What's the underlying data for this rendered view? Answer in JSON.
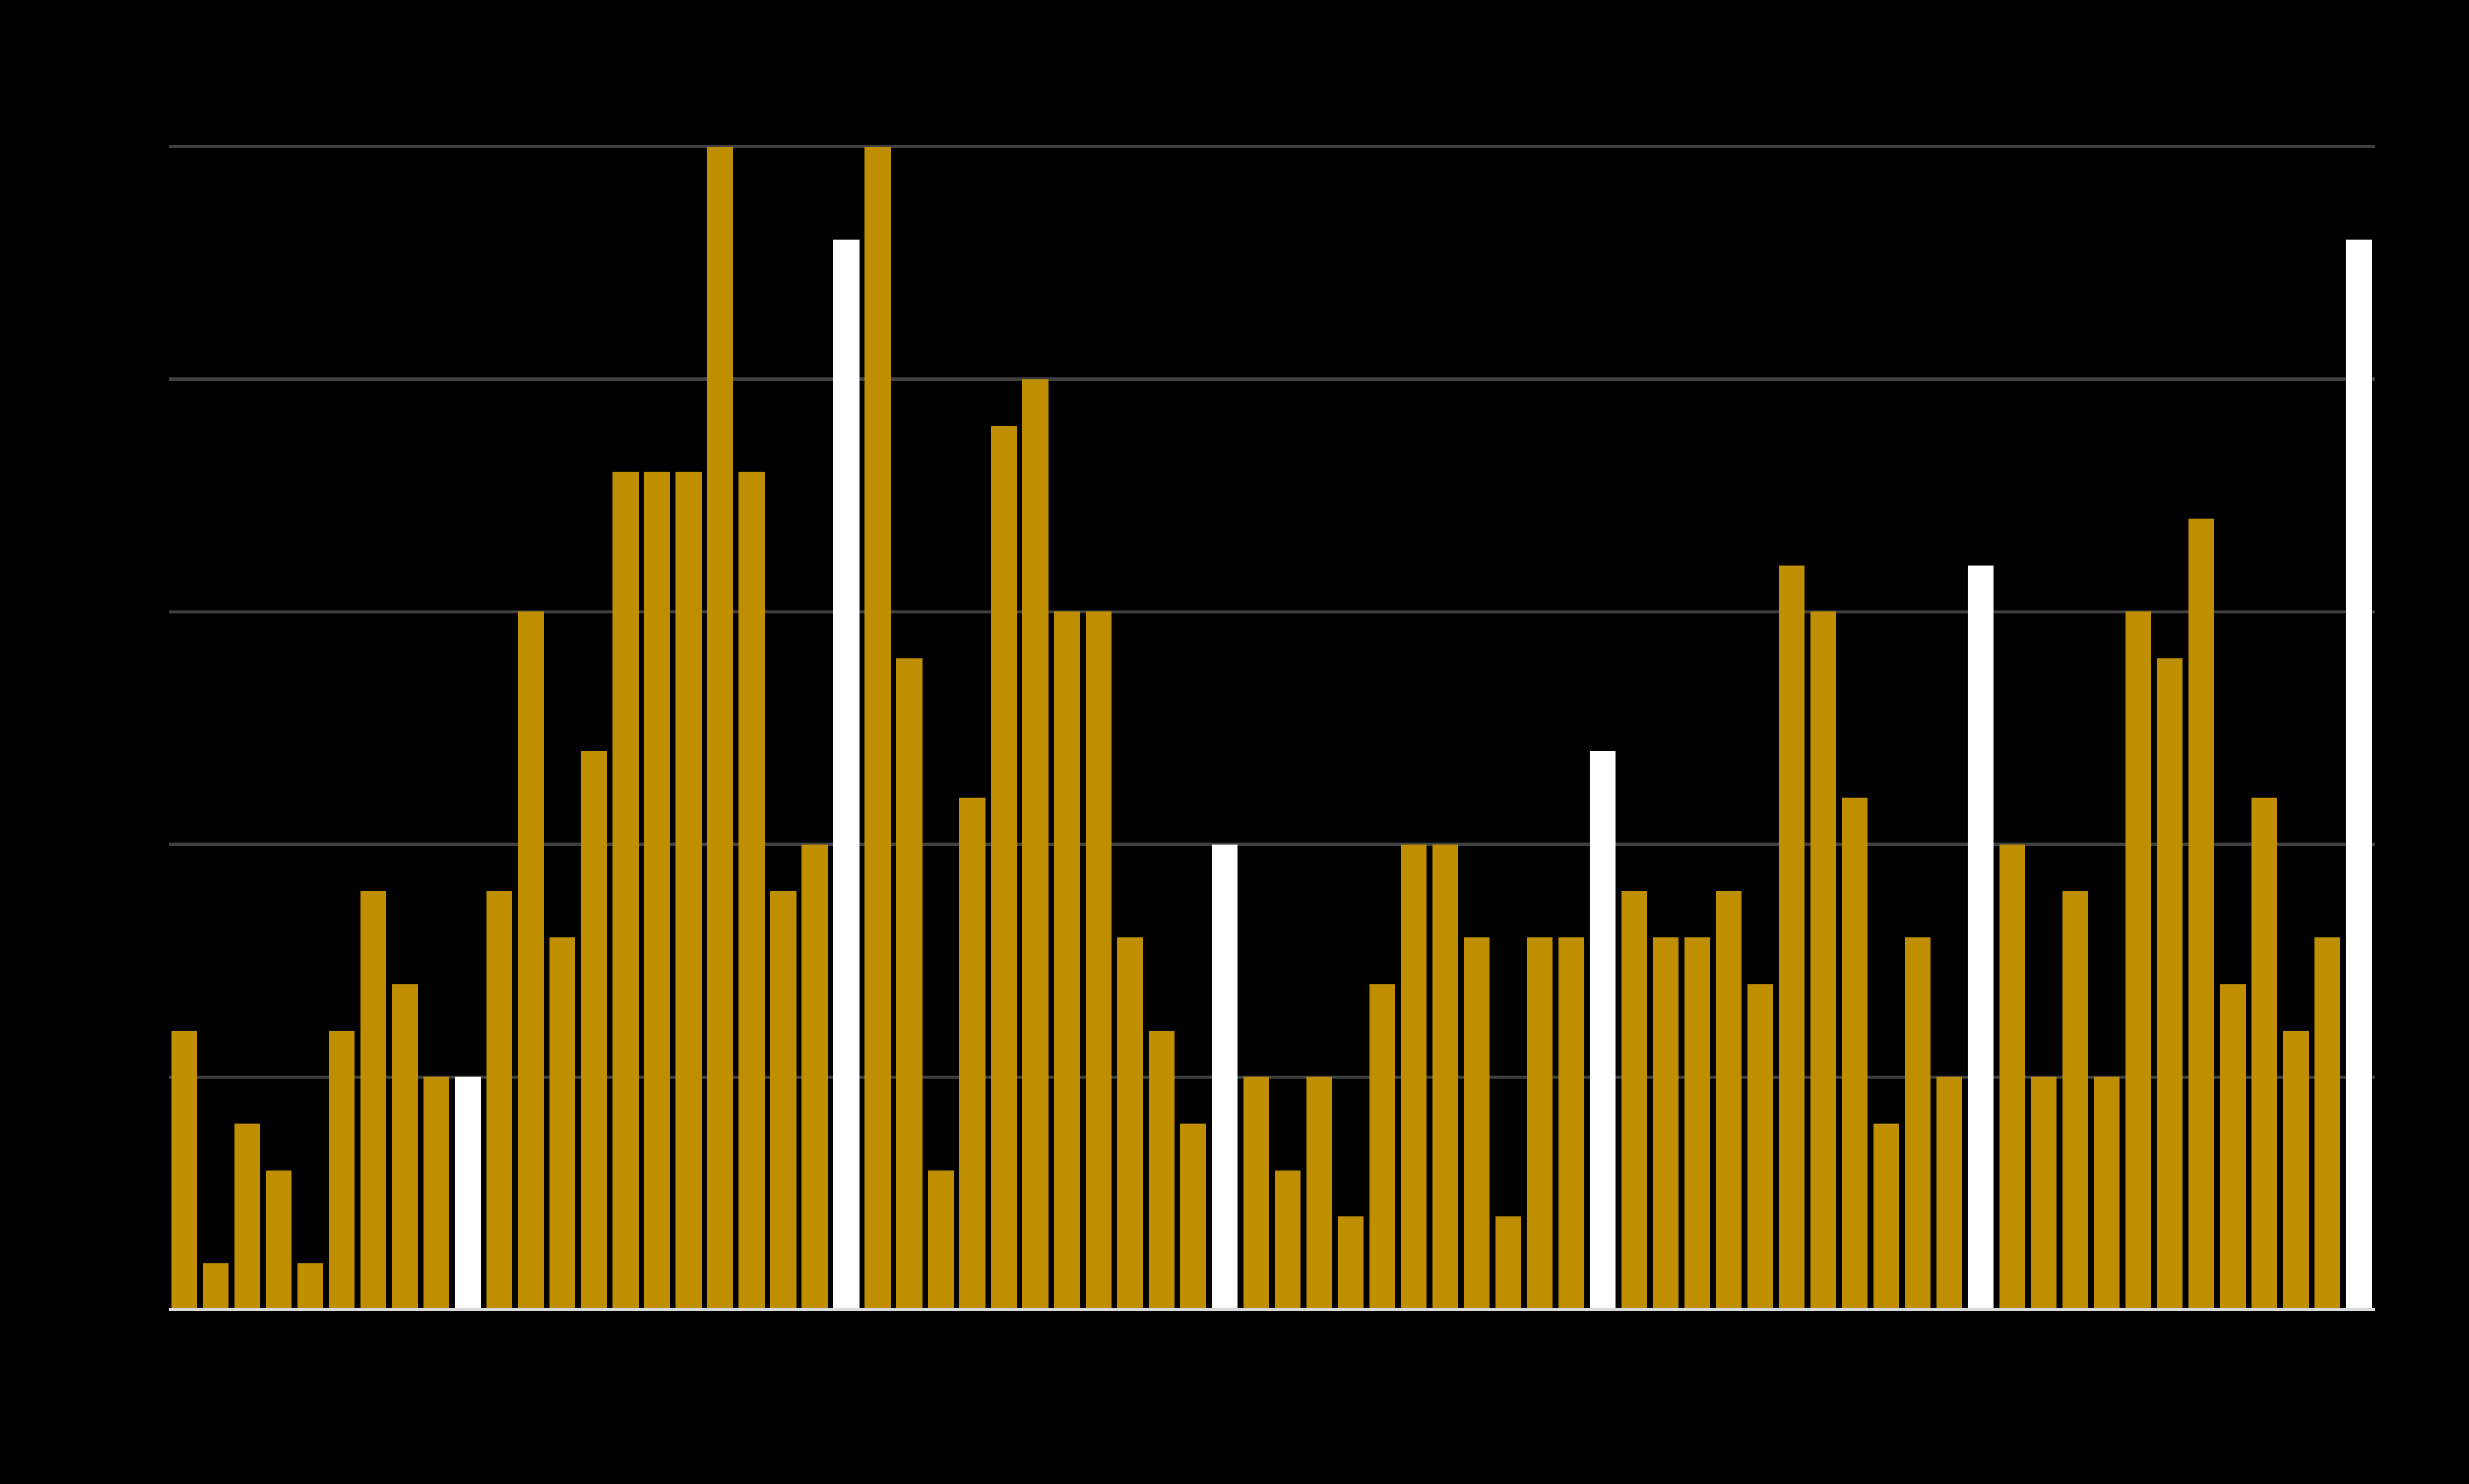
{
  "chart_data": {
    "type": "bar",
    "values": [
      6,
      1,
      4,
      3,
      1,
      6,
      9,
      7,
      5,
      5,
      9,
      15,
      8,
      12,
      18,
      18,
      18,
      25,
      18,
      9,
      10,
      23,
      25,
      14,
      3,
      11,
      19,
      20,
      15,
      15,
      8,
      6,
      4,
      10,
      5,
      3,
      5,
      2,
      7,
      10,
      10,
      8,
      2,
      8,
      8,
      12,
      9,
      8,
      8,
      9,
      7,
      16,
      15,
      11,
      4,
      8,
      5,
      16,
      10,
      5,
      9,
      5,
      15,
      14,
      17,
      7,
      11,
      6,
      8,
      23
    ],
    "colors": [
      "#bf8f00",
      "#bf8f00",
      "#bf8f00",
      "#bf8f00",
      "#bf8f00",
      "#bf8f00",
      "#bf8f00",
      "#bf8f00",
      "#bf8f00",
      "#ffffff",
      "#bf8f00",
      "#bf8f00",
      "#bf8f00",
      "#bf8f00",
      "#bf8f00",
      "#bf8f00",
      "#bf8f00",
      "#bf8f00",
      "#bf8f00",
      "#bf8f00",
      "#bf8f00",
      "#ffffff",
      "#bf8f00",
      "#bf8f00",
      "#bf8f00",
      "#bf8f00",
      "#bf8f00",
      "#bf8f00",
      "#bf8f00",
      "#bf8f00",
      "#bf8f00",
      "#bf8f00",
      "#bf8f00",
      "#ffffff",
      "#bf8f00",
      "#bf8f00",
      "#bf8f00",
      "#bf8f00",
      "#bf8f00",
      "#bf8f00",
      "#bf8f00",
      "#bf8f00",
      "#bf8f00",
      "#bf8f00",
      "#bf8f00",
      "#ffffff",
      "#bf8f00",
      "#bf8f00",
      "#bf8f00",
      "#bf8f00",
      "#bf8f00",
      "#bf8f00",
      "#bf8f00",
      "#bf8f00",
      "#bf8f00",
      "#bf8f00",
      "#bf8f00",
      "#ffffff",
      "#bf8f00",
      "#bf8f00",
      "#bf8f00",
      "#bf8f00",
      "#bf8f00",
      "#bf8f00",
      "#bf8f00",
      "#bf8f00",
      "#bf8f00",
      "#bf8f00",
      "#bf8f00",
      "#ffffff"
    ],
    "ylim": [
      0,
      25
    ],
    "yticks": [
      0,
      5,
      10,
      15,
      20,
      25
    ],
    "grid": true
  }
}
